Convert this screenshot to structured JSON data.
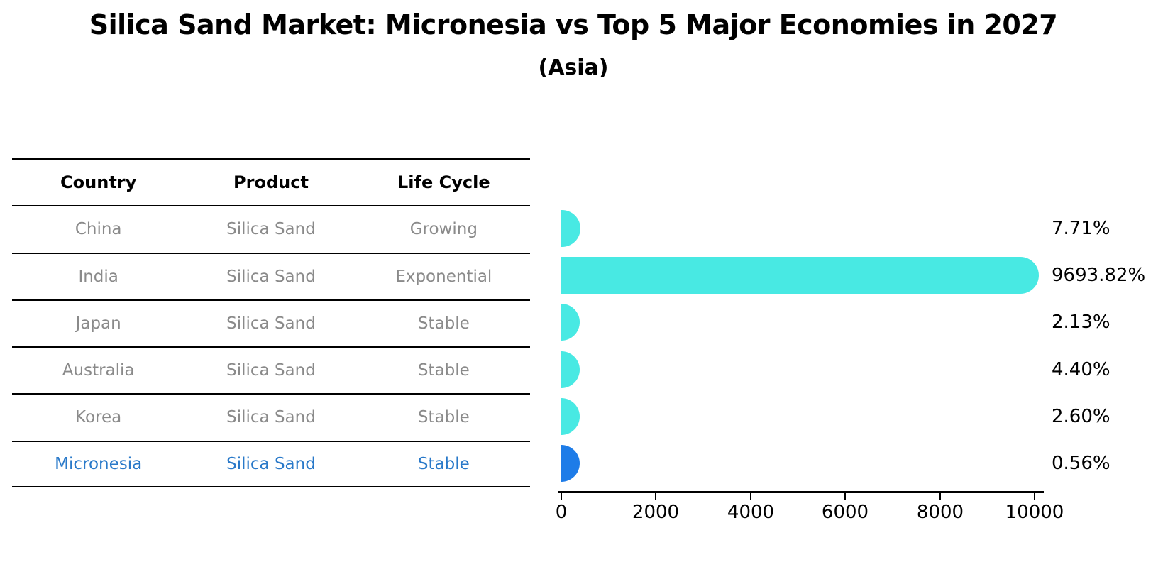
{
  "title": "Silica Sand Market: Micronesia vs Top 5 Major Economies in 2027",
  "subtitle": "(Asia)",
  "table": {
    "headers": [
      "Country",
      "Product",
      "Life Cycle"
    ],
    "rows": [
      {
        "country": "China",
        "product": "Silica Sand",
        "life_cycle": "Growing",
        "highlight": false
      },
      {
        "country": "India",
        "product": "Silica Sand",
        "life_cycle": "Exponential",
        "highlight": false
      },
      {
        "country": "Japan",
        "product": "Silica Sand",
        "life_cycle": "Stable",
        "highlight": false
      },
      {
        "country": "Australia",
        "product": "Silica Sand",
        "life_cycle": "Stable",
        "highlight": false
      },
      {
        "country": "Korea",
        "product": "Silica Sand",
        "life_cycle": "Stable",
        "highlight": false
      },
      {
        "country": "Micronesia",
        "product": "Silica Sand",
        "life_cycle": "Stable",
        "highlight": true
      }
    ]
  },
  "chart_data": {
    "type": "bar",
    "orientation": "horizontal",
    "title": "Silica Sand Market: Micronesia vs Top 5 Major Economies in 2027",
    "subtitle": "(Asia)",
    "categories": [
      "China",
      "India",
      "Japan",
      "Australia",
      "Korea",
      "Micronesia"
    ],
    "values": [
      7.71,
      9693.82,
      2.13,
      4.4,
      2.6,
      0.56
    ],
    "value_labels": [
      "7.71%",
      "9693.82%",
      "2.13%",
      "4.40%",
      "2.60%",
      "0.56%"
    ],
    "x_ticks": [
      0,
      2000,
      4000,
      6000,
      8000,
      10000
    ],
    "x_tick_labels": [
      "0",
      "2000",
      "4000",
      "6000",
      "8000",
      "10000"
    ],
    "xlim": [
      0,
      10000
    ],
    "grid": false,
    "legend": "none",
    "bar_color": "#48e9e3",
    "highlight_color": "#1e7ce8",
    "highlight_index": 5,
    "highlight_text_color": "#2979c9",
    "text_color_rows": "#8a8a8a",
    "axis_color": "#000000"
  }
}
